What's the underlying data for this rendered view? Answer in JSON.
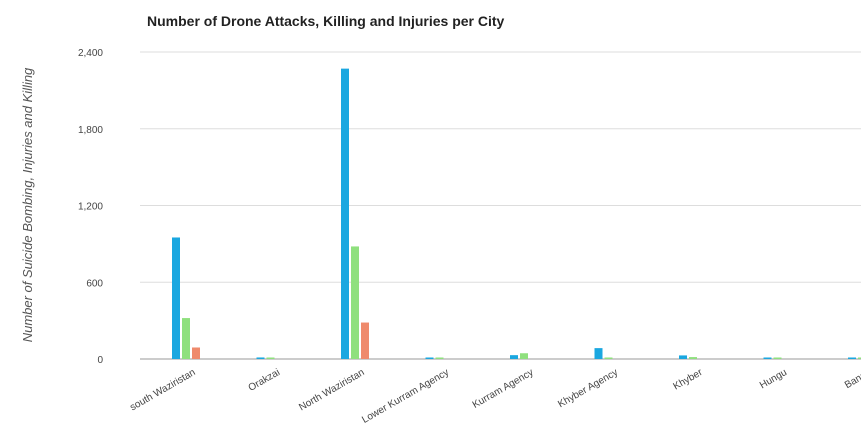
{
  "chart_data": {
    "type": "bar",
    "title": "Number of Drone Attacks, Killing and Injuries per City",
    "xlabel": "",
    "ylabel": "Number of Suicide Bombing, Injuries and Killing",
    "ylim": [
      0,
      2400
    ],
    "yticks": [
      0,
      600,
      1200,
      1800,
      2400
    ],
    "ytick_labels": [
      "0",
      "600",
      "1,200",
      "1,800",
      "2,400"
    ],
    "grid": true,
    "legend": "none",
    "categories": [
      "south Waziristan",
      "Orakzai",
      "North Waziristan",
      "Lower Kurram Agency",
      "Kurram Agency",
      "Khyber Agency",
      "Khyber",
      "Hungu",
      "Bannu"
    ],
    "series": [
      {
        "color": "#1aa7e0",
        "values": [
          950,
          12,
          2270,
          10,
          30,
          85,
          28,
          5,
          10
        ]
      },
      {
        "color": "#8fe07e",
        "values": [
          320,
          8,
          880,
          5,
          45,
          8,
          15,
          3,
          5
        ]
      },
      {
        "color": "#ef8a6c",
        "values": [
          90,
          0,
          285,
          0,
          0,
          0,
          0,
          0,
          0
        ]
      }
    ]
  }
}
